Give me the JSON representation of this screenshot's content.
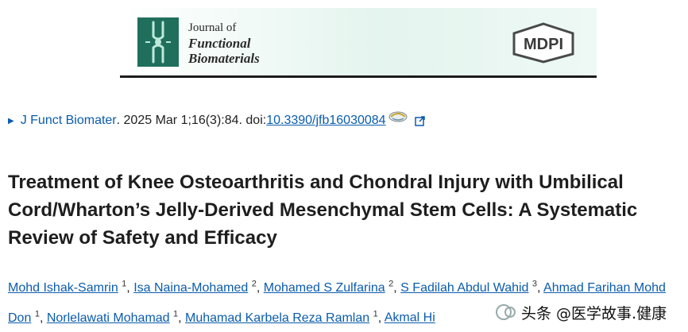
{
  "banner": {
    "journal_line1": "Journal of",
    "journal_line2": "Functional",
    "journal_line3": "Biomaterials",
    "publisher_logo_text": "MDPI"
  },
  "citation": {
    "journal": "J Funct Biomater",
    "details": ". 2025 Mar 1;16(3):84. doi: ",
    "doi": "10.3390/jfb16030084"
  },
  "article": {
    "title": "Treatment of Knee Osteoarthritis and Chondral Injury with Umbilical Cord/Wharton’s Jelly-Derived Mesenchymal Stem Cells: A Systematic Review of Safety and Efficacy"
  },
  "authors": [
    {
      "name": "Mohd Ishak-Samrin",
      "aff": "1"
    },
    {
      "name": "Isa Naina-Mohamed",
      "aff": "2"
    },
    {
      "name": "Mohamed S Zulfarina",
      "aff": "2"
    },
    {
      "name": "S Fadilah Abdul Wahid",
      "aff": "3"
    },
    {
      "name": "Ahmad Farihan Mohd Don",
      "aff": "1"
    },
    {
      "name": "Norlelawati Mohamad",
      "aff": "1"
    },
    {
      "name": "Muhamad Karbela Reza Ramlan",
      "aff": "1"
    },
    {
      "name": "Akmal Hi",
      "aff": ""
    }
  ],
  "watermark": {
    "text": "头条 @医学故事.健康"
  },
  "colors": {
    "link": "#0b5cad",
    "banner_green": "#1f6f5c"
  }
}
